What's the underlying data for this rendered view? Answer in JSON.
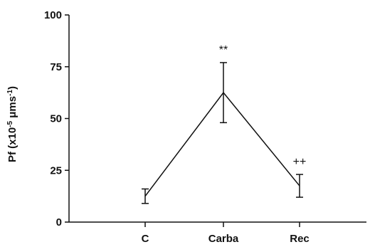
{
  "chart_data": {
    "type": "line",
    "title": "",
    "xlabel": "",
    "ylabel": {
      "main": "Pf (x10",
      "exponent": "-5",
      "unit": " μms",
      "unit_exponent": "-1",
      "close": ")"
    },
    "categories": [
      "C",
      "Carba",
      "Rec"
    ],
    "series": [
      {
        "values": [
          12.5,
          62.5,
          17.5
        ],
        "error_low": [
          9,
          48,
          12
        ],
        "error_high": [
          16,
          77,
          23
        ]
      }
    ],
    "annotations": [
      "",
      "**",
      "++"
    ],
    "ylim": [
      0,
      100
    ],
    "yticks": [
      0,
      25,
      50,
      75,
      100
    ],
    "grid": false,
    "line_color": "#111111"
  }
}
